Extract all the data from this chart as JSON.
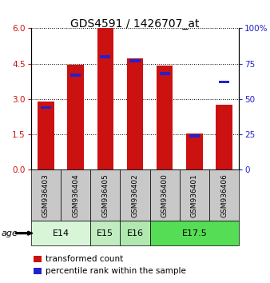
{
  "title": "GDS4591 / 1426707_at",
  "samples": [
    "GSM936403",
    "GSM936404",
    "GSM936405",
    "GSM936402",
    "GSM936400",
    "GSM936401",
    "GSM936406"
  ],
  "transformed_counts": [
    2.9,
    4.47,
    6.0,
    4.72,
    4.42,
    1.55,
    2.76
  ],
  "percentile_ranks": [
    44,
    67,
    80,
    77,
    68,
    24,
    62
  ],
  "ylim_left": [
    0,
    6
  ],
  "ylim_right": [
    0,
    100
  ],
  "yticks_left": [
    0,
    1.5,
    3,
    4.5,
    6
  ],
  "yticks_right": [
    0,
    25,
    50,
    75,
    100
  ],
  "bar_color": "#cc1111",
  "percentile_color": "#2222cc",
  "bar_width": 0.55,
  "percentile_bar_width": 0.35,
  "percentile_bar_height": 0.12,
  "age_groups": [
    {
      "label": "E14",
      "samples": [
        "GSM936403",
        "GSM936404"
      ],
      "color": "#d8f5d8"
    },
    {
      "label": "E15",
      "samples": [
        "GSM936405"
      ],
      "color": "#c0ecc0"
    },
    {
      "label": "E16",
      "samples": [
        "GSM936402"
      ],
      "color": "#b0e8b0"
    },
    {
      "label": "E17.5",
      "samples": [
        "GSM936400",
        "GSM936401",
        "GSM936406"
      ],
      "color": "#55dd55"
    }
  ],
  "legend_red_label": "transformed count",
  "legend_blue_label": "percentile rank within the sample",
  "age_label": "age",
  "sample_box_color": "#c8c8c8",
  "title_fontsize": 10,
  "tick_fontsize": 7.5,
  "sample_fontsize": 6.5,
  "age_fontsize": 8,
  "legend_fontsize": 7.5
}
